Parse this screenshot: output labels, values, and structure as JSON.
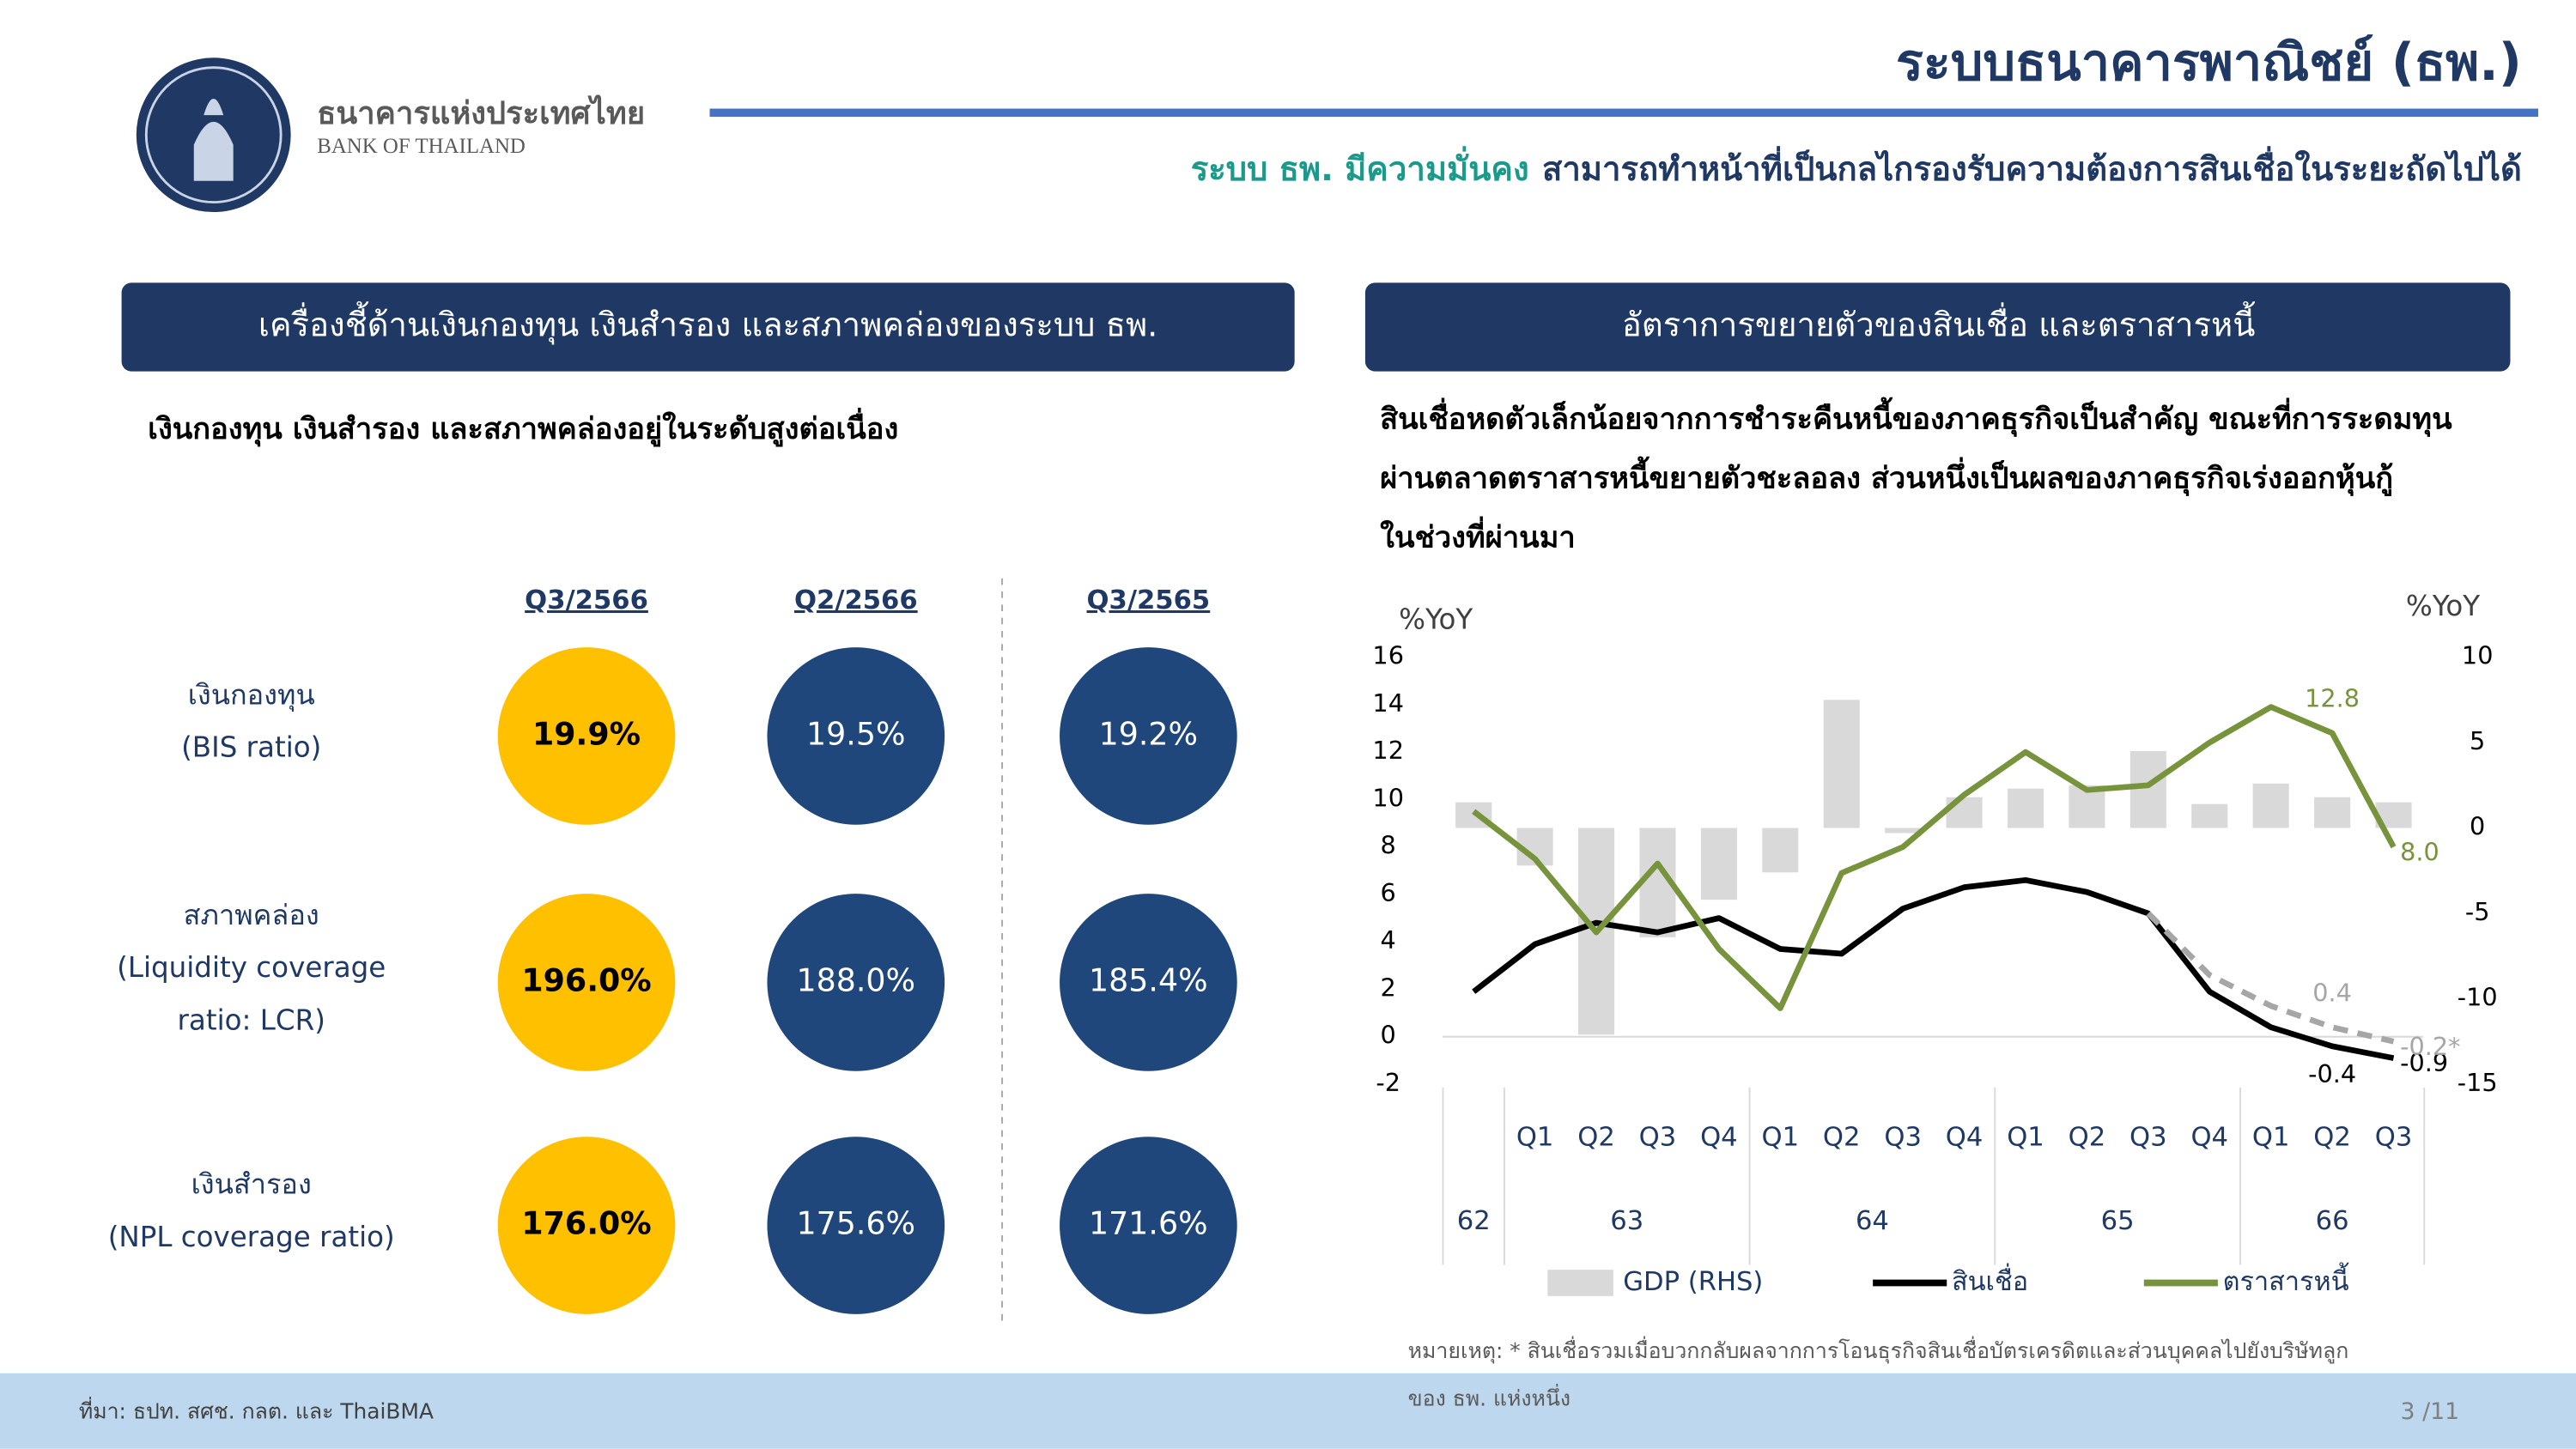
{
  "header": {
    "title": "ระบบธนาคารพาณิชย์ (ธพ.)",
    "logo_th": "ธนาคารแห่งประเทศไทย",
    "logo_en": "BANK OF THAILAND",
    "subtitle_highlight": "ระบบ ธพ. มีความมั่นคง",
    "subtitle_rest": "สามารถทำหน้าที่เป็นกลไกรองรับความต้องการสินเชื่อในระยะถัดไปได้"
  },
  "left": {
    "heading": "เครื่องชี้ด้านเงินกองทุน เงินสำรอง และสภาพคล่องของระบบ ธพ.",
    "description": "เงินกองทุน เงินสำรอง และสภาพคล่องอยู่ในระดับสูงต่อเนื่อง",
    "columns": [
      "Q3/2566",
      "Q2/2566",
      "Q3/2565"
    ],
    "rows": [
      {
        "label": [
          "เงินกองทุน",
          "(BIS ratio)"
        ],
        "values": [
          "19.9%",
          "19.5%",
          "19.2%"
        ]
      },
      {
        "label": [
          "สภาพคล่อง",
          "(Liquidity coverage",
          "ratio: LCR)"
        ],
        "values": [
          "196.0%",
          "188.0%",
          "185.4%"
        ]
      },
      {
        "label": [
          "เงินสำรอง",
          "(NPL coverage ratio)"
        ],
        "values": [
          "176.0%",
          "175.6%",
          "171.6%"
        ]
      }
    ]
  },
  "right": {
    "heading": "อัตราการขยายตัวของสินเชื่อ และตราสารหนี้",
    "description": [
      "สินเชื่อหดตัวเล็กน้อยจากการชำระคืนหนี้ของภาคธุรกิจเป็นสำคัญ ขณะที่การระดมทุน",
      "ผ่านตลาดตราสารหนี้ขยายตัวชะลอลง ส่วนหนึ่งเป็นผลของภาคธุรกิจเร่งออกหุ้นกู้",
      "ในช่วงที่ผ่านมา"
    ]
  },
  "chart_data": {
    "type": "combo",
    "ylabel": "%YoY",
    "y2label": "%YoY",
    "categories": [
      null,
      "Q1",
      "Q2",
      "Q3",
      "Q4",
      "Q1",
      "Q2",
      "Q3",
      "Q4",
      "Q1",
      "Q2",
      "Q3",
      "Q4",
      "Q1",
      "Q2",
      "Q3"
    ],
    "year_groups": [
      {
        "label": "62",
        "count": 1
      },
      {
        "label": "63",
        "count": 4
      },
      {
        "label": "64",
        "count": 4
      },
      {
        "label": "65",
        "count": 4
      },
      {
        "label": "66",
        "count": 3
      }
    ],
    "ylim": [
      -2,
      16
    ],
    "yticks": [
      -2,
      0,
      2,
      4,
      6,
      8,
      10,
      12,
      14,
      16
    ],
    "y2lim": [
      -15,
      10
    ],
    "y2ticks": [
      -15,
      -10,
      -5,
      0,
      5,
      10
    ],
    "series": [
      {
        "name": "GDP (RHS)",
        "type": "bar",
        "axis": "y2",
        "color": "#d9d9d9",
        "values": [
          1.5,
          -2.2,
          -12.1,
          -6.4,
          -4.2,
          -2.6,
          7.5,
          -0.3,
          1.8,
          2.3,
          2.5,
          4.5,
          1.4,
          2.6,
          1.8,
          1.5
        ]
      },
      {
        "name": "สินเชื่อ",
        "type": "line",
        "color": "#000000",
        "values": [
          1.9,
          3.9,
          4.8,
          4.4,
          5.0,
          3.7,
          3.5,
          5.4,
          6.3,
          6.6,
          6.1,
          5.2,
          1.9,
          0.4,
          -0.4,
          -0.9
        ],
        "value_labels": [
          null,
          null,
          null,
          null,
          null,
          null,
          null,
          null,
          null,
          null,
          null,
          null,
          null,
          null,
          "-0.4",
          "-0.9"
        ]
      },
      {
        "type": "line",
        "dashed": true,
        "color": "#a6a6a6",
        "values": [
          null,
          null,
          null,
          null,
          null,
          null,
          null,
          null,
          null,
          null,
          null,
          5.2,
          2.6,
          1.3,
          0.4,
          -0.2
        ],
        "value_labels": [
          null,
          null,
          null,
          null,
          null,
          null,
          null,
          null,
          null,
          null,
          null,
          null,
          null,
          null,
          "0.4",
          "-0.2*"
        ]
      },
      {
        "name": "ตราสารหนี้",
        "type": "line",
        "color": "#77933c",
        "values": [
          9.5,
          7.5,
          4.4,
          7.3,
          3.7,
          1.2,
          6.9,
          8.0,
          10.2,
          12.0,
          10.4,
          10.6,
          12.4,
          13.9,
          12.8,
          8.0
        ],
        "value_labels": [
          null,
          null,
          null,
          null,
          null,
          null,
          null,
          null,
          null,
          null,
          null,
          null,
          null,
          null,
          "12.8",
          "8.0"
        ]
      }
    ]
  },
  "footer": {
    "source": "ที่มา: ธปท. สศช. กลต. และ ThaiBMA",
    "note": [
      "หมายเหตุ: * สินเชื่อรวมเมื่อบวกกลับผลจากการโอนธุรกิจสินเชื่อบัตรเครดิตและส่วนบุคคลไปยังบริษัทลูก",
      "ของ ธพ. แห่งหนึ่ง"
    ],
    "page": "3 /11"
  }
}
